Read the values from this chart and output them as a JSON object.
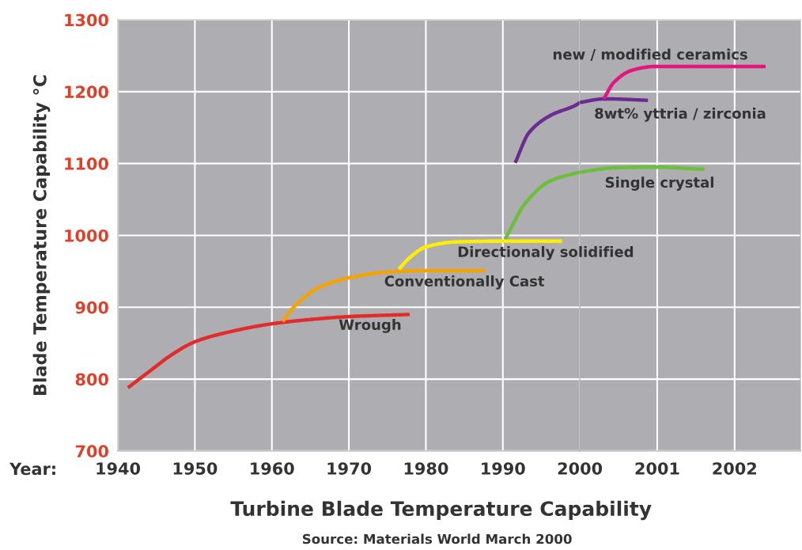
{
  "chart_data": [
    {
      "type": "line",
      "xlabel": "Turbine Blade Temperature Capability",
      "ylabel": "Blade Temperature Capability °C",
      "xlim": [
        1940,
        2000
      ],
      "ylim": [
        700,
        1300
      ],
      "xticks": [
        1940,
        1950,
        1960,
        1970,
        1980,
        1990,
        2000
      ],
      "yticks": [
        700,
        800,
        900,
        1000,
        1100,
        1200,
        1300
      ],
      "grid": true,
      "marker": "none",
      "line_style": "solid",
      "series": [
        {
          "name": "Wrough",
          "color": "#e32b2b",
          "x": [
            1941.3,
            1944,
            1947,
            1950,
            1955,
            1960,
            1965,
            1970,
            1977.9
          ],
          "values": [
            788,
            810,
            834,
            852,
            867,
            877,
            883,
            887,
            890
          ]
        },
        {
          "name": "Conventionally Cast",
          "color": "#f5a300",
          "x": [
            1961.4,
            1962.5,
            1964,
            1966,
            1970,
            1975,
            1980,
            1987.7
          ],
          "values": [
            880,
            896,
            912,
            927,
            941,
            949,
            951,
            951
          ]
        },
        {
          "name": "Directionaly solidified",
          "color": "#ffee00",
          "x": [
            1976.5,
            1978,
            1980,
            1984,
            1990,
            1997.7
          ],
          "values": [
            953,
            970,
            984,
            991,
            992,
            992
          ]
        },
        {
          "color": "#6cbf3a",
          "x": [
            1990.3,
            1993,
            1996.2,
            1999.6,
            2000
          ],
          "values": [
            995,
            1046,
            1076,
            1087,
            1088
          ]
        },
        {
          "color": "#6a2c91",
          "x": [
            1991.6,
            1993.4,
            1996.2,
            1999.6,
            2000
          ],
          "values": [
            1101,
            1143,
            1167,
            1182,
            1185
          ]
        }
      ],
      "annotations": [
        "Year:",
        "Source: Materials World March 2000"
      ]
    },
    {
      "type": "line",
      "xlim": [
        2000,
        2002.85
      ],
      "ylim": [
        700,
        1300
      ],
      "xticks": [
        2001,
        2002
      ],
      "yticks": [
        700,
        800,
        900,
        1000,
        1100,
        1200,
        1300
      ],
      "tick_labels": "x",
      "grid": true,
      "marker": "none",
      "line_style": "solid",
      "series": [
        {
          "name": "Single crystal",
          "color": "#6cbf3a",
          "x": [
            2000,
            2000.44,
            2000.96,
            2001.61
          ],
          "values": [
            1088,
            1094,
            1095,
            1092
          ]
        },
        {
          "name": "8wt% yttria / zirconia",
          "color": "#6a2c91",
          "x": [
            2000,
            2000.32,
            2000.88
          ],
          "values": [
            1185,
            1190,
            1188
          ]
        },
        {
          "name": "new / modified ceramics",
          "color": "#e4157f",
          "x": [
            2000.31,
            2000.44,
            2000.68,
            2000.96,
            2002.4
          ],
          "values": [
            1190,
            1213,
            1230,
            1235,
            1235
          ]
        }
      ]
    }
  ]
}
